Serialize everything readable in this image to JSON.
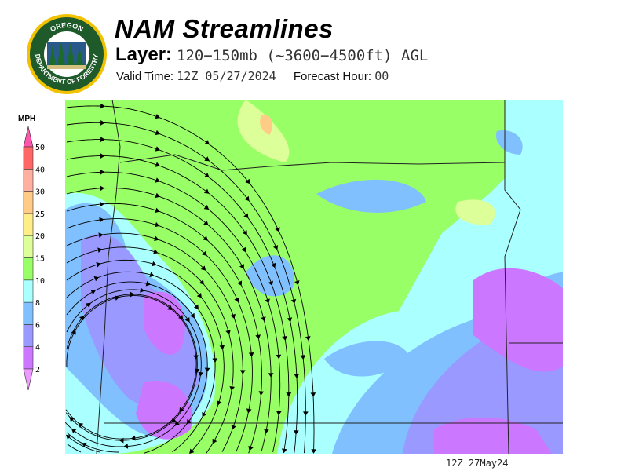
{
  "header": {
    "title": "NAM Streamlines",
    "layer_label": "Layer:",
    "layer_value": "120−150mb (~3600−4500ft) AGL",
    "valid_time_label": "Valid Time:",
    "valid_time_value": "12Z 05/27/2024",
    "forecast_hour_label": "Forecast Hour:",
    "forecast_hour_value": "00"
  },
  "logo": {
    "text_top": "OREGON",
    "text_bottom": "DEPARTMENT OF FORESTRY"
  },
  "legend": {
    "unit": "MPH",
    "levels": [
      "2",
      "4",
      "6",
      "8",
      "10",
      "15",
      "20",
      "25",
      "30",
      "40",
      "50"
    ],
    "colors": [
      "#cc77ff",
      "#9999ff",
      "#80c0ff",
      "#aaffff",
      "#99ff66",
      "#ddff99",
      "#ffee88",
      "#ffcc88",
      "#ffb0a0",
      "#ff6666"
    ],
    "below_color": "#ee99ff",
    "above_color": "#ff55aa"
  },
  "map": {
    "timestamp": "12Z 27May24"
  }
}
